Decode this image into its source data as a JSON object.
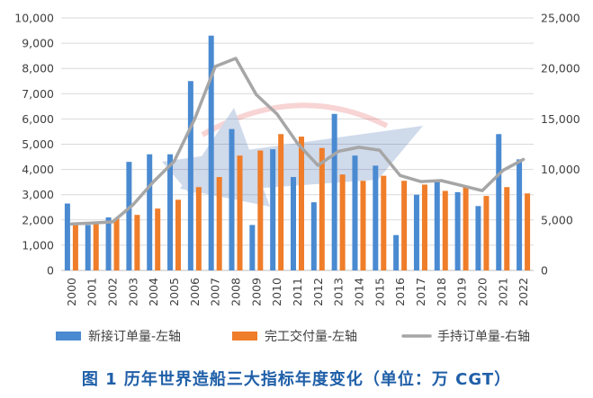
{
  "caption": "图 1   历年世界造船三大指标年度变化（单位：万 CGT）",
  "chart_data": {
    "type": "bar",
    "title": "",
    "xlabel": "",
    "ylabel": "",
    "categories": [
      "2000",
      "2001",
      "2002",
      "2003",
      "2004",
      "2005",
      "2006",
      "2007",
      "2008",
      "2009",
      "2010",
      "2011",
      "2012",
      "2013",
      "2014",
      "2015",
      "2016",
      "2017",
      "2018",
      "2019",
      "2020",
      "2021",
      "2022"
    ],
    "ylim_left": [
      0,
      10000
    ],
    "ylim_right": [
      0,
      25000
    ],
    "yticks_left": [
      "0",
      "1,000",
      "2,000",
      "3,000",
      "4,000",
      "5,000",
      "6,000",
      "7,000",
      "8,000",
      "9,000",
      "10,000"
    ],
    "yticks_right": [
      "0",
      "5,000",
      "10,000",
      "15,000",
      "20,000",
      "25,000"
    ],
    "grid": "horizontal",
    "legend_position": "bottom",
    "series": [
      {
        "name": "新接订单量-左轴",
        "type": "bar",
        "axis": "left",
        "color": "#4a8ad1",
        "values": [
          2650,
          1800,
          2100,
          4300,
          4600,
          4600,
          7500,
          9300,
          5600,
          1800,
          4800,
          3700,
          2700,
          6200,
          4550,
          4150,
          1400,
          3000,
          3550,
          3100,
          2550,
          5400,
          4400
        ]
      },
      {
        "name": "完工交付量-左轴",
        "type": "bar",
        "axis": "left",
        "color": "#ef7d2a",
        "values": [
          1850,
          1900,
          2050,
          2200,
          2450,
          2800,
          3300,
          3700,
          4550,
          4750,
          5400,
          5300,
          4850,
          3800,
          3550,
          3750,
          3550,
          3400,
          3150,
          3350,
          2950,
          3300,
          3050
        ]
      },
      {
        "name": "手持订单量-右轴",
        "type": "line",
        "axis": "right",
        "color": "#a6a6a6",
        "values": [
          4600,
          4700,
          4800,
          6500,
          8800,
          10800,
          15000,
          20200,
          21000,
          17400,
          15500,
          12600,
          10400,
          11800,
          12200,
          11900,
          9400,
          8800,
          8900,
          8400,
          7900,
          9900,
          11000
        ]
      }
    ]
  }
}
